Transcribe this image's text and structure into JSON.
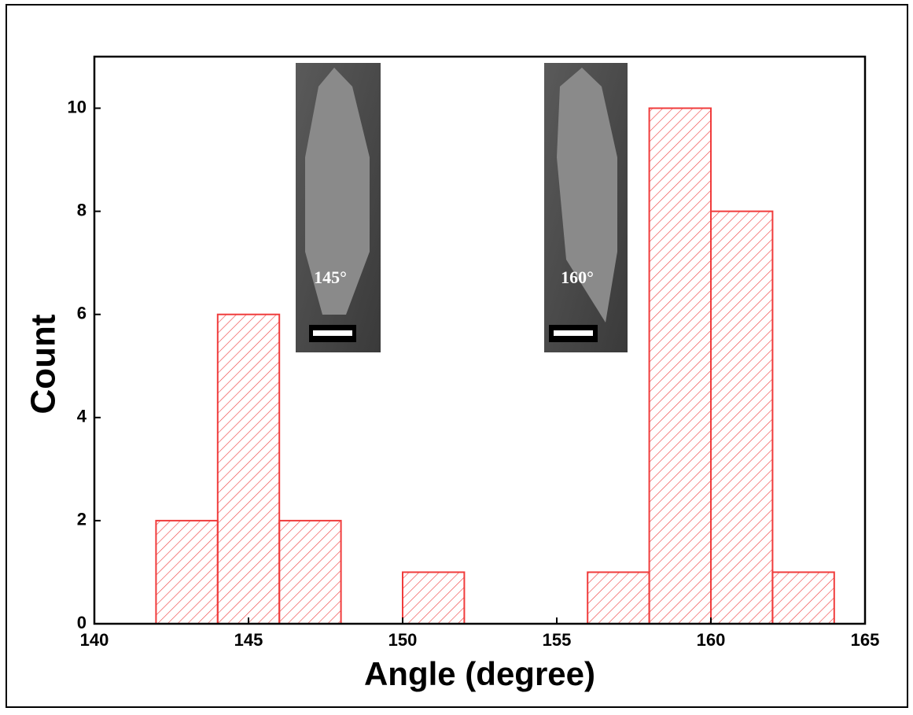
{
  "chart_data": {
    "type": "histogram",
    "xlabel": "Angle (degree)",
    "ylabel": "Count",
    "bins": [
      142,
      144,
      146,
      148,
      150,
      152,
      154,
      156,
      158,
      160,
      162,
      164
    ],
    "values": [
      2,
      6,
      2,
      0,
      1,
      0,
      0,
      1,
      10,
      8,
      1
    ],
    "color": "#f03c3c",
    "xlim": [
      140,
      165
    ],
    "xticks": [
      140,
      145,
      150,
      155,
      160,
      165
    ],
    "ylim": [
      0,
      11
    ],
    "yticks": [
      0,
      2,
      4,
      6,
      8,
      10
    ],
    "annotations": [
      "145°",
      "160°"
    ]
  }
}
